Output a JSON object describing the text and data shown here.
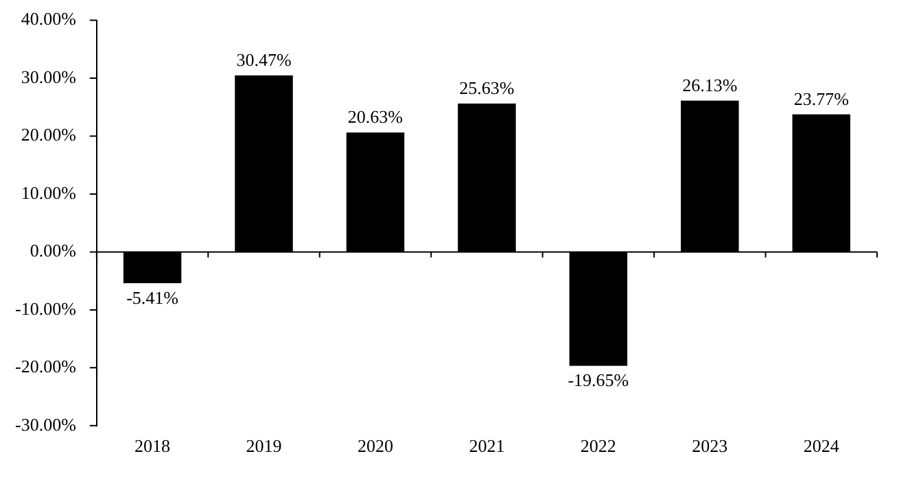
{
  "chart_data": {
    "type": "bar",
    "categories": [
      "2018",
      "2019",
      "2020",
      "2021",
      "2022",
      "2023",
      "2024"
    ],
    "values": [
      -5.41,
      30.47,
      20.63,
      25.63,
      -19.65,
      26.13,
      23.77
    ],
    "value_labels": [
      "-5.41%",
      "30.47%",
      "20.63%",
      "25.63%",
      "-19.65%",
      "26.13%",
      "23.77%"
    ],
    "color": "#000000",
    "ylim": [
      -30,
      40
    ],
    "yticks": [
      {
        "value": -30,
        "label": "-30.00%"
      },
      {
        "value": -20,
        "label": "-20.00%"
      },
      {
        "value": -10,
        "label": "-10.00%"
      },
      {
        "value": 0,
        "label": "0.00%"
      },
      {
        "value": 10,
        "label": "10.00%"
      },
      {
        "value": 20,
        "label": "20.00%"
      },
      {
        "value": 30,
        "label": "30.00%"
      },
      {
        "value": 40,
        "label": "40.00%"
      }
    ],
    "legend": false
  }
}
